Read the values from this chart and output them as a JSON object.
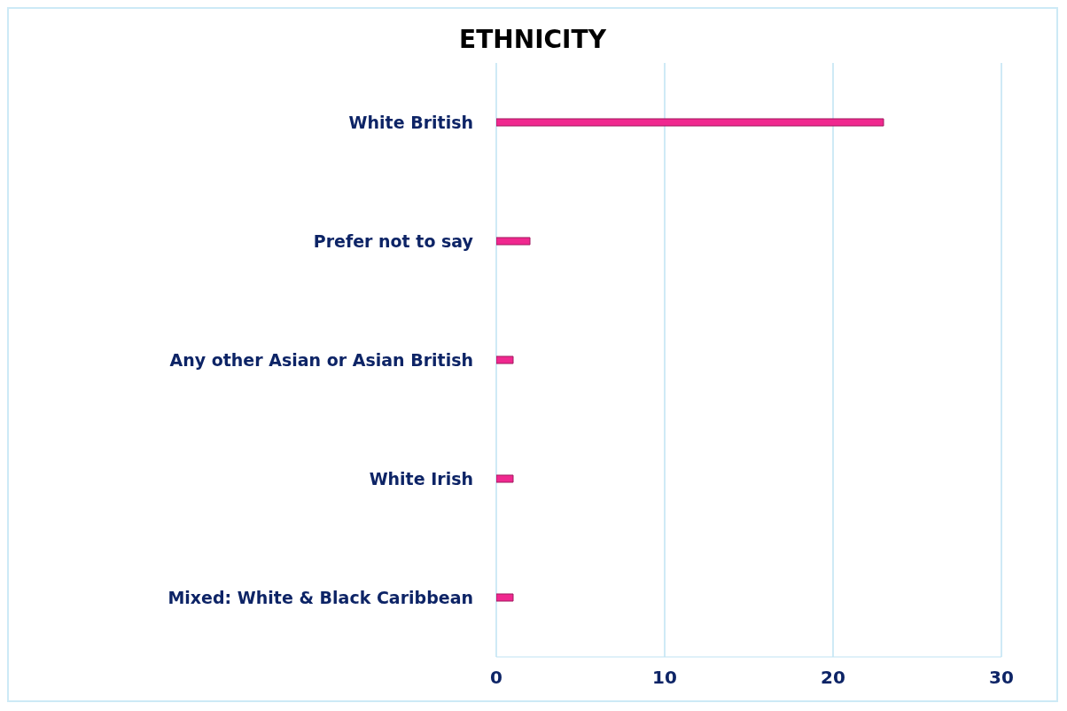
{
  "chart_data": {
    "type": "bar",
    "orientation": "horizontal",
    "title": "ETHNICITY",
    "categories": [
      "White British",
      "Prefer not to say",
      "Any other Asian or Asian British",
      "White Irish",
      "Mixed: White & Black Caribbean"
    ],
    "values": [
      23,
      2,
      1,
      1,
      1
    ],
    "color": "#f0288f",
    "xlim": [
      0,
      30
    ],
    "xticks": [
      0,
      10,
      20,
      30
    ],
    "grid": "x"
  }
}
